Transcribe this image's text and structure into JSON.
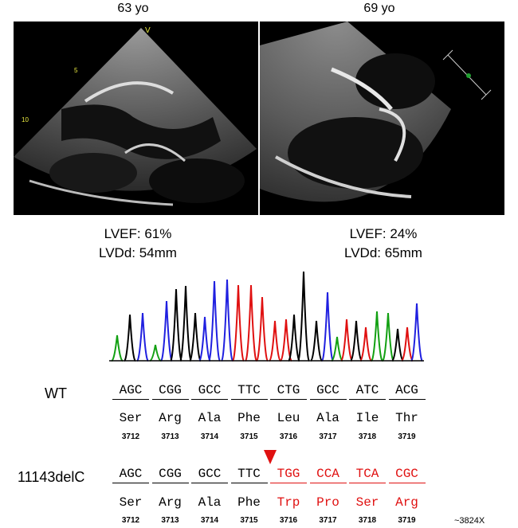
{
  "panels": [
    {
      "age": "63 yo",
      "lvef": "LVEF: 61%",
      "lvdd": "LVDd: 54mm"
    },
    {
      "age": "69 yo",
      "lvef": "LVEF: 24%",
      "lvdd": "LVDd: 65mm"
    }
  ],
  "echo_markers": {
    "v": "V",
    "d5": "5",
    "d10": "10"
  },
  "sequence": {
    "wt": {
      "label": "WT",
      "codons": [
        "AGC",
        "CGG",
        "GCC",
        "TTC",
        "CTG",
        "GCC",
        "ATC",
        "ACG"
      ],
      "aas": [
        "Ser",
        "Arg",
        "Ala",
        "Phe",
        "Leu",
        "Ala",
        "Ile",
        "Thr"
      ],
      "nums": [
        "3712",
        "3713",
        "3714",
        "3715",
        "3716",
        "3717",
        "3718",
        "3719"
      ]
    },
    "mut": {
      "label": "11143delC",
      "codons": [
        "AGC",
        "CGG",
        "GCC",
        "TTC",
        "TGG",
        "CCA",
        "TCA",
        "CGC"
      ],
      "aas": [
        "Ser",
        "Arg",
        "Ala",
        "Phe",
        "Trp",
        "Pro",
        "Ser",
        "Arg"
      ],
      "nums": [
        "3712",
        "3713",
        "3714",
        "3715",
        "3716",
        "3717",
        "3718",
        "3719"
      ],
      "extra": "~3824X"
    }
  },
  "colors": {
    "mutation": "#e01010",
    "trace_green": "#12a012",
    "trace_blue": "#2020e0",
    "trace_red": "#e01010",
    "trace_black": "#000000"
  }
}
